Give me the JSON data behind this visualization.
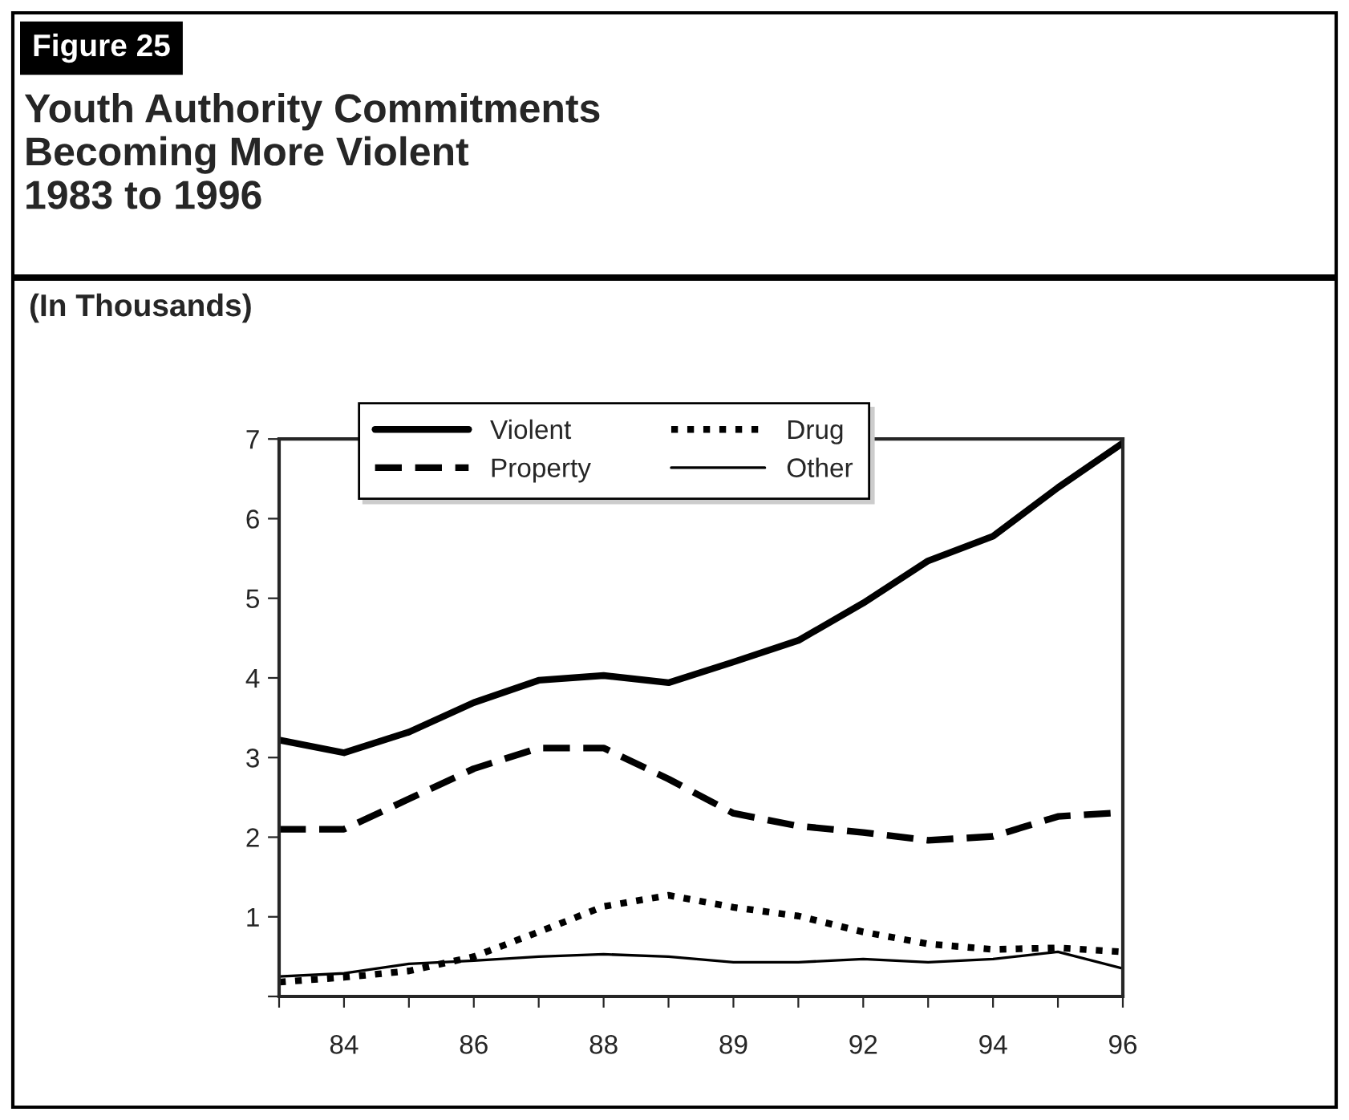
{
  "chart_data": {
    "type": "line",
    "title": "Youth Authority Commitments\nBecoming More Violent\n1983 to 1996",
    "subtitle": "(In Thousands)",
    "annotations": [
      "Figure 25"
    ],
    "categories": [
      null,
      "84",
      null,
      "86",
      null,
      "88",
      null,
      "89",
      null,
      "92",
      null,
      "94",
      null,
      "96"
    ],
    "series": [
      {
        "name": "Violent",
        "color": "#000000",
        "line_style": "solid",
        "values": [
          3.22,
          3.06,
          3.32,
          3.69,
          3.97,
          4.03,
          3.94,
          4.2,
          4.47,
          4.94,
          5.47,
          5.78,
          6.39,
          6.95
        ]
      },
      {
        "name": "Property",
        "color": "#000000",
        "line_style": "dashed",
        "values": [
          2.1,
          2.1,
          2.48,
          2.86,
          3.12,
          3.12,
          2.73,
          2.3,
          2.14,
          2.06,
          1.96,
          2.01,
          2.26,
          2.31
        ]
      },
      {
        "name": "Drug",
        "color": "#000000",
        "line_style": "dotted",
        "values": [
          0.18,
          0.24,
          0.32,
          0.5,
          0.81,
          1.13,
          1.27,
          1.12,
          1.01,
          0.81,
          0.66,
          0.59,
          0.61,
          0.56
        ]
      },
      {
        "name": "Other",
        "color": "#000000",
        "line_style": "solid",
        "values": [
          0.25,
          0.29,
          0.41,
          0.45,
          0.5,
          0.53,
          0.5,
          0.43,
          0.43,
          0.47,
          0.43,
          0.47,
          0.56,
          0.35
        ]
      }
    ],
    "ylim": [
      0,
      7
    ],
    "yticks": [
      {
        "value": 0,
        "label": null
      },
      1,
      2,
      3,
      4,
      5,
      6,
      7
    ],
    "grid": false,
    "legend": "top",
    "marker": "none"
  }
}
